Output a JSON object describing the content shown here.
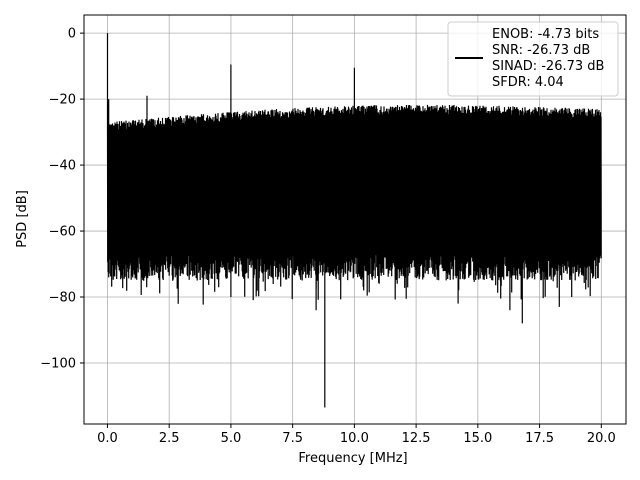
{
  "chart_data": {
    "type": "line",
    "title": "",
    "xlabel": "Frequency [MHz]",
    "ylabel": "PSD [dB]",
    "xlim": [
      -0.95,
      21.0
    ],
    "ylim": [
      -118.5,
      5.5
    ],
    "xticks": [
      0.0,
      2.5,
      5.0,
      7.5,
      10.0,
      12.5,
      15.0,
      17.5,
      20.0
    ],
    "xtick_labels": [
      "0.0",
      "2.5",
      "5.0",
      "7.5",
      "10.0",
      "12.5",
      "15.0",
      "17.5",
      "20.0"
    ],
    "yticks": [
      0,
      -20,
      -40,
      -60,
      -80,
      -100
    ],
    "ytick_labels": [
      "0",
      "−20",
      "−40",
      "−60",
      "−80",
      "−100"
    ],
    "grid": true,
    "legend_position": "top-right",
    "series": [
      {
        "name": "ENOB: -4.73 bits\nSNR: -26.73 dB\nSINAD: -26.73 dB\nSFDR: 4.04",
        "color": "#000000",
        "x_range": [
          0.0,
          20.0
        ],
        "noise_floor_top": -22,
        "noise_floor_bottom": -65,
        "peaks": [
          {
            "x": 0.0,
            "y": 0
          },
          {
            "x": 0.05,
            "y": -20
          },
          {
            "x": 1.6,
            "y": -19
          },
          {
            "x": 5.0,
            "y": -9.5
          },
          {
            "x": 10.0,
            "y": -10.5
          }
        ],
        "dips": [
          {
            "x": 5.0,
            "y": -80
          },
          {
            "x": 8.45,
            "y": -84
          },
          {
            "x": 8.8,
            "y": -113.5
          },
          {
            "x": 14.2,
            "y": -82
          },
          {
            "x": 16.3,
            "y": -84
          },
          {
            "x": 16.8,
            "y": -88
          },
          {
            "x": 18.3,
            "y": -83
          },
          {
            "x": 18.8,
            "y": -80
          }
        ]
      }
    ]
  }
}
